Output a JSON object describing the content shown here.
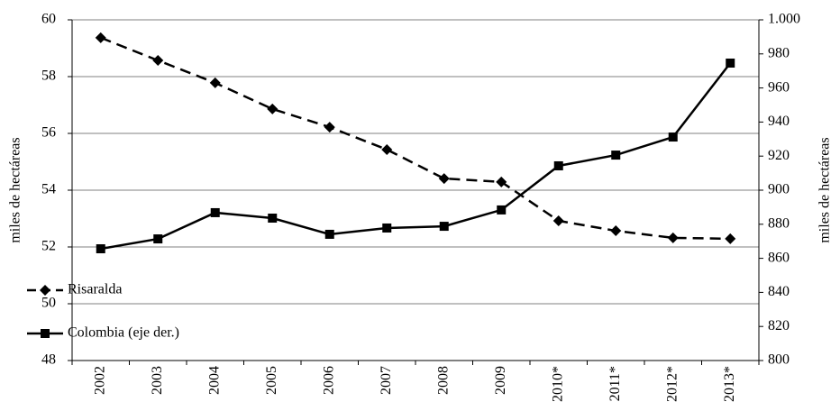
{
  "chart_data": {
    "type": "line",
    "categories": [
      "2002",
      "2003",
      "2004",
      "2005",
      "2006",
      "2007",
      "2008",
      "2009",
      "2010*",
      "2011*",
      "2012*",
      "2013*"
    ],
    "series": [
      {
        "name": "Risaralda",
        "color": "#000000",
        "dash": true,
        "marker": "diamond",
        "values": [
          59.37,
          58.57,
          57.78,
          56.86,
          56.22,
          55.43,
          54.41,
          54.29,
          52.92,
          52.57,
          52.32,
          52.29
        ]
      },
      {
        "name": "Colombia (eje der.)",
        "color": "#000000",
        "dash": false,
        "marker": "square",
        "axis": "y2",
        "values": [
          865.6,
          871.4,
          886.8,
          883.6,
          874.1,
          877.8,
          878.8,
          888.4,
          914.3,
          920.6,
          931.2,
          974.6
        ]
      }
    ],
    "ylabel": "miles de hectáreas",
    "y2label": "miles de hectáreas",
    "ylim": [
      48,
      60
    ],
    "yticks": [
      48,
      50,
      52,
      54,
      56,
      58,
      60
    ],
    "y2lim": [
      800,
      1000
    ],
    "y2ticks": [
      800,
      820,
      840,
      860,
      880,
      900,
      920,
      940,
      960,
      980,
      {
        "value": 1000,
        "label": "1.000"
      }
    ],
    "grid": true,
    "legend": "lower left"
  }
}
